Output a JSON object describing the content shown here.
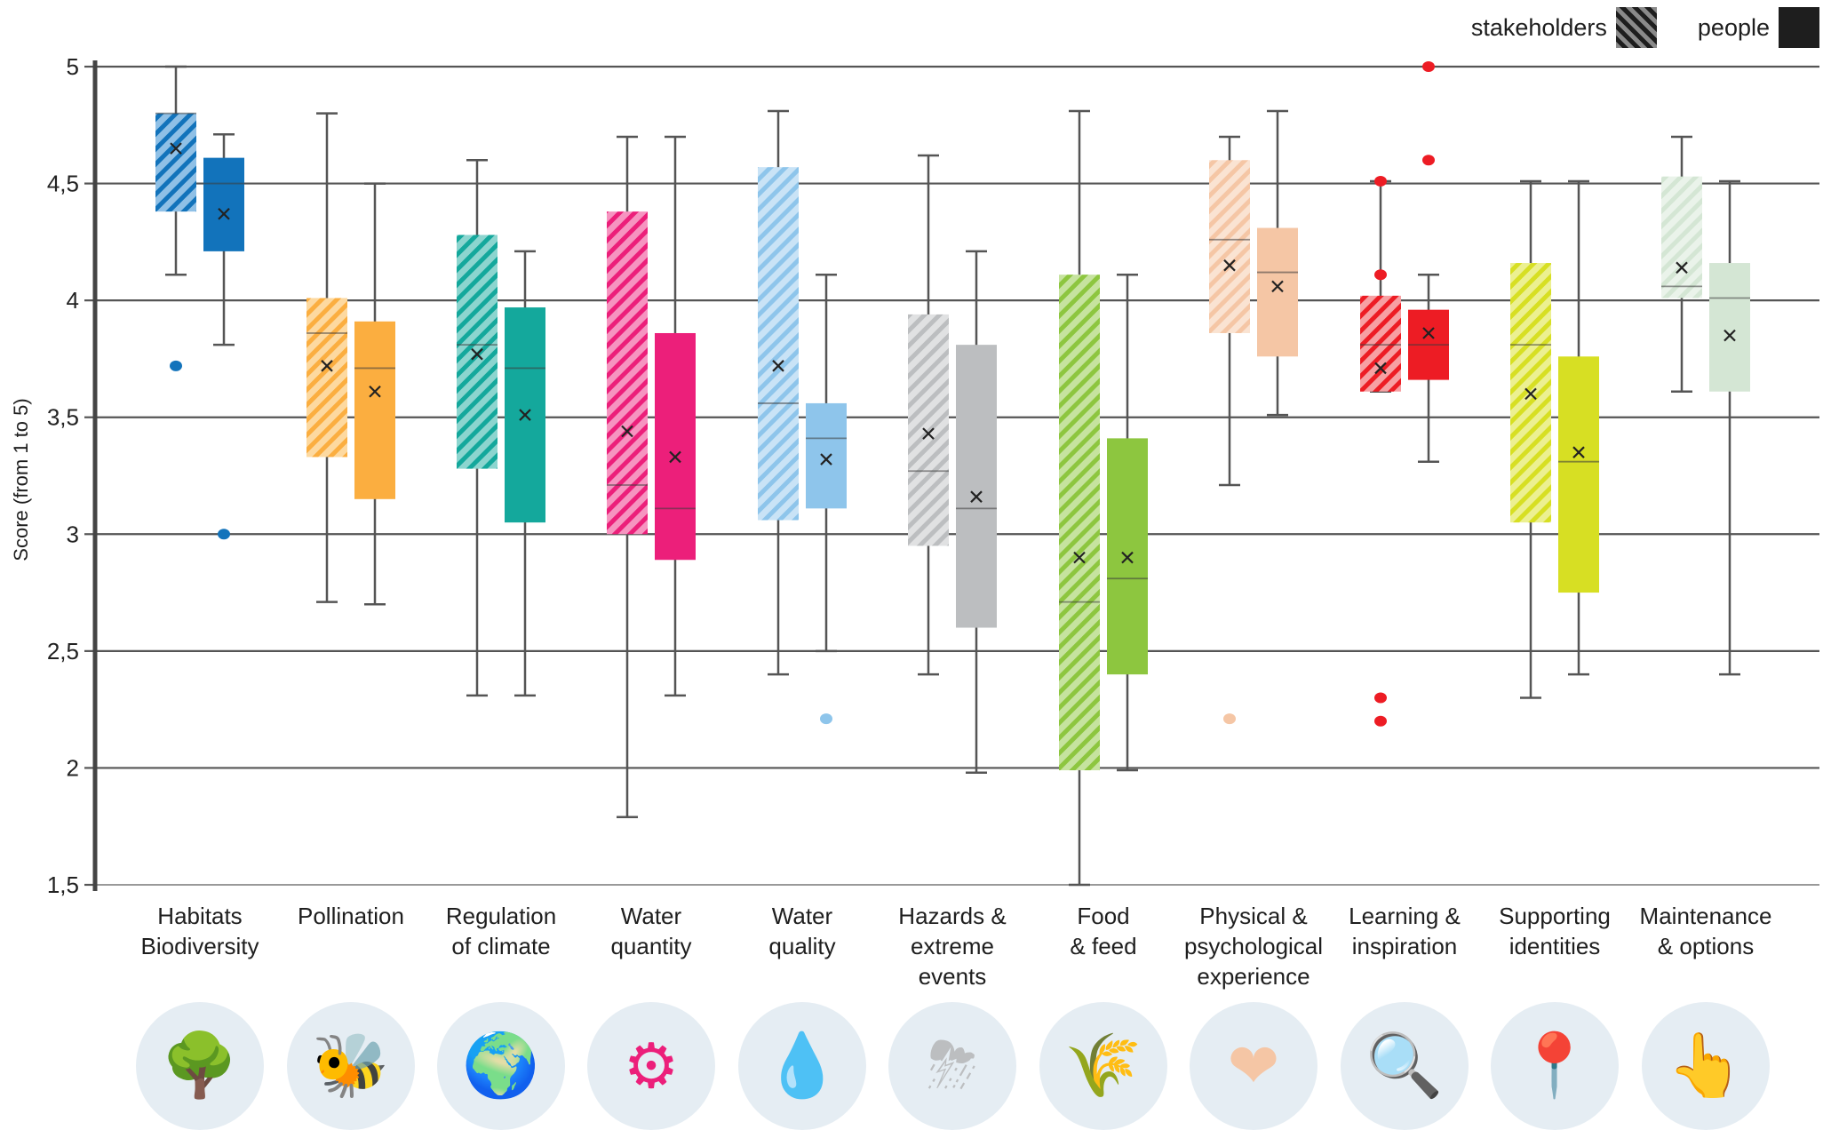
{
  "legend": {
    "stakeholders_label": "stakeholders",
    "people_label": "people"
  },
  "chart_data": {
    "type": "box",
    "title": "",
    "xlabel": "",
    "ylabel": "Score (from 1 to 5)",
    "ylim": [
      1.5,
      5
    ],
    "yticks": [
      "1,5",
      "2",
      "2,5",
      "3",
      "3,5",
      "4",
      "4,5",
      "5"
    ],
    "ytick_values": [
      1.5,
      2,
      2.5,
      3,
      3.5,
      4,
      4.5,
      5
    ],
    "grid": true,
    "legend_position": "top-right",
    "series_names": [
      "stakeholders",
      "people"
    ],
    "categories": [
      {
        "label": "Habitats\nBiodiversity",
        "icon": "turtle-tree-icon",
        "color": "#1273bb",
        "light": "#8fc0e6",
        "stakeholders": {
          "min": 4.11,
          "q1": 4.38,
          "median": 4.8,
          "q3": 4.8,
          "max": 5.0,
          "mean": 4.65,
          "outliers": [
            3.72
          ]
        },
        "people": {
          "min": 3.81,
          "q1": 4.21,
          "median": 4.5,
          "q3": 4.61,
          "max": 4.71,
          "mean": 4.37,
          "outliers": [
            3.0
          ]
        }
      },
      {
        "label": "Pollination",
        "icon": "bee-icon",
        "color": "#fbae40",
        "light": "#fdd9a0",
        "stakeholders": {
          "min": 2.71,
          "q1": 3.33,
          "median": 3.86,
          "q3": 4.01,
          "max": 4.8,
          "mean": 3.72,
          "outliers": []
        },
        "people": {
          "min": 2.7,
          "q1": 3.15,
          "median": 3.71,
          "q3": 3.91,
          "max": 4.5,
          "mean": 3.61,
          "outliers": []
        }
      },
      {
        "label": "Regulation\nof climate",
        "icon": "globe-controls-icon",
        "color": "#14a89c",
        "light": "#8cd5cf",
        "stakeholders": {
          "min": 2.31,
          "q1": 3.28,
          "median": 3.81,
          "q3": 4.28,
          "max": 4.6,
          "mean": 3.77,
          "outliers": []
        },
        "people": {
          "min": 2.31,
          "q1": 3.05,
          "median": 3.71,
          "q3": 3.97,
          "max": 4.21,
          "mean": 3.51,
          "outliers": []
        }
      },
      {
        "label": "Water\nquantity",
        "icon": "gear-drop-icon",
        "color": "#ec1f7a",
        "light": "#f694c0",
        "stakeholders": {
          "min": 1.79,
          "q1": 3.0,
          "median": 3.21,
          "q3": 4.38,
          "max": 4.7,
          "mean": 3.44,
          "outliers": []
        },
        "people": {
          "min": 2.31,
          "q1": 2.89,
          "median": 3.11,
          "q3": 3.86,
          "max": 4.7,
          "mean": 3.33,
          "outliers": []
        }
      },
      {
        "label": "Water\nquality",
        "icon": "drop-check-icon",
        "color": "#8ec5eb",
        "light": "#c9e3f6",
        "stakeholders": {
          "min": 2.4,
          "q1": 3.06,
          "median": 3.56,
          "q3": 4.57,
          "max": 4.81,
          "mean": 3.72,
          "outliers": []
        },
        "people": {
          "min": 2.5,
          "q1": 3.11,
          "median": 3.41,
          "q3": 3.56,
          "max": 4.11,
          "mean": 3.32,
          "outliers": [
            2.21
          ]
        }
      },
      {
        "label": "Hazards &\nextreme\nevents",
        "icon": "storm-warning-icon",
        "color": "#bcbec0",
        "light": "#e0e1e2",
        "stakeholders": {
          "min": 2.4,
          "q1": 2.95,
          "median": 3.27,
          "q3": 3.94,
          "max": 4.62,
          "mean": 3.43,
          "outliers": []
        },
        "people": {
          "min": 1.98,
          "q1": 2.6,
          "median": 3.11,
          "q3": 3.81,
          "max": 4.21,
          "mean": 3.16,
          "outliers": []
        }
      },
      {
        "label": "Food\n& feed",
        "icon": "grain-sack-icon",
        "color": "#8dc63f",
        "light": "#c6e39f",
        "stakeholders": {
          "min": 1.5,
          "q1": 1.99,
          "median": 2.71,
          "q3": 4.11,
          "max": 4.81,
          "mean": 2.9,
          "outliers": []
        },
        "people": {
          "min": 1.99,
          "q1": 2.4,
          "median": 2.81,
          "q3": 3.41,
          "max": 4.11,
          "mean": 2.9,
          "outliers": []
        }
      },
      {
        "label": "Physical &\npsychological\nexperience",
        "icon": "heart-leaf-icon",
        "color": "#f5c6a5",
        "light": "#fae3d2",
        "stakeholders": {
          "min": 3.21,
          "q1": 3.86,
          "median": 4.26,
          "q3": 4.6,
          "max": 4.7,
          "mean": 4.15,
          "outliers": [
            2.21
          ]
        },
        "people": {
          "min": 3.51,
          "q1": 3.76,
          "median": 4.12,
          "q3": 4.31,
          "max": 4.81,
          "mean": 4.06,
          "outliers": []
        }
      },
      {
        "label": "Learning &\ninspiration",
        "icon": "leaf-magnifier-icon",
        "color": "#ed1c24",
        "light": "#f7a0a3",
        "stakeholders": {
          "min": 3.61,
          "q1": 3.61,
          "median": 3.81,
          "q3": 4.02,
          "max": 4.51,
          "mean": 3.71,
          "outliers": [
            4.51,
            4.11,
            2.3,
            2.2
          ]
        },
        "people": {
          "min": 3.31,
          "q1": 3.66,
          "median": 3.81,
          "q3": 3.96,
          "max": 4.11,
          "mean": 3.86,
          "outliers": [
            5.0,
            4.6
          ]
        }
      },
      {
        "label": "Supporting\nidentities",
        "icon": "location-heart-icon",
        "color": "#d7df23",
        "light": "#ecf091",
        "stakeholders": {
          "min": 2.3,
          "q1": 3.05,
          "median": 3.81,
          "q3": 4.16,
          "max": 4.51,
          "mean": 3.6,
          "outliers": []
        },
        "people": {
          "min": 2.4,
          "q1": 2.75,
          "median": 3.31,
          "q3": 3.76,
          "max": 4.51,
          "mean": 3.35,
          "outliers": []
        }
      },
      {
        "label": "Maintenance\n& options",
        "icon": "abcd-choice-icon",
        "color": "#d4e6d4",
        "light": "#eaf3ea",
        "stakeholders": {
          "min": 3.61,
          "q1": 4.01,
          "median": 4.06,
          "q3": 4.53,
          "max": 4.7,
          "mean": 4.14,
          "outliers": []
        },
        "people": {
          "min": 2.4,
          "q1": 3.61,
          "median": 4.01,
          "q3": 4.16,
          "max": 4.51,
          "mean": 3.85,
          "outliers": []
        }
      }
    ]
  }
}
